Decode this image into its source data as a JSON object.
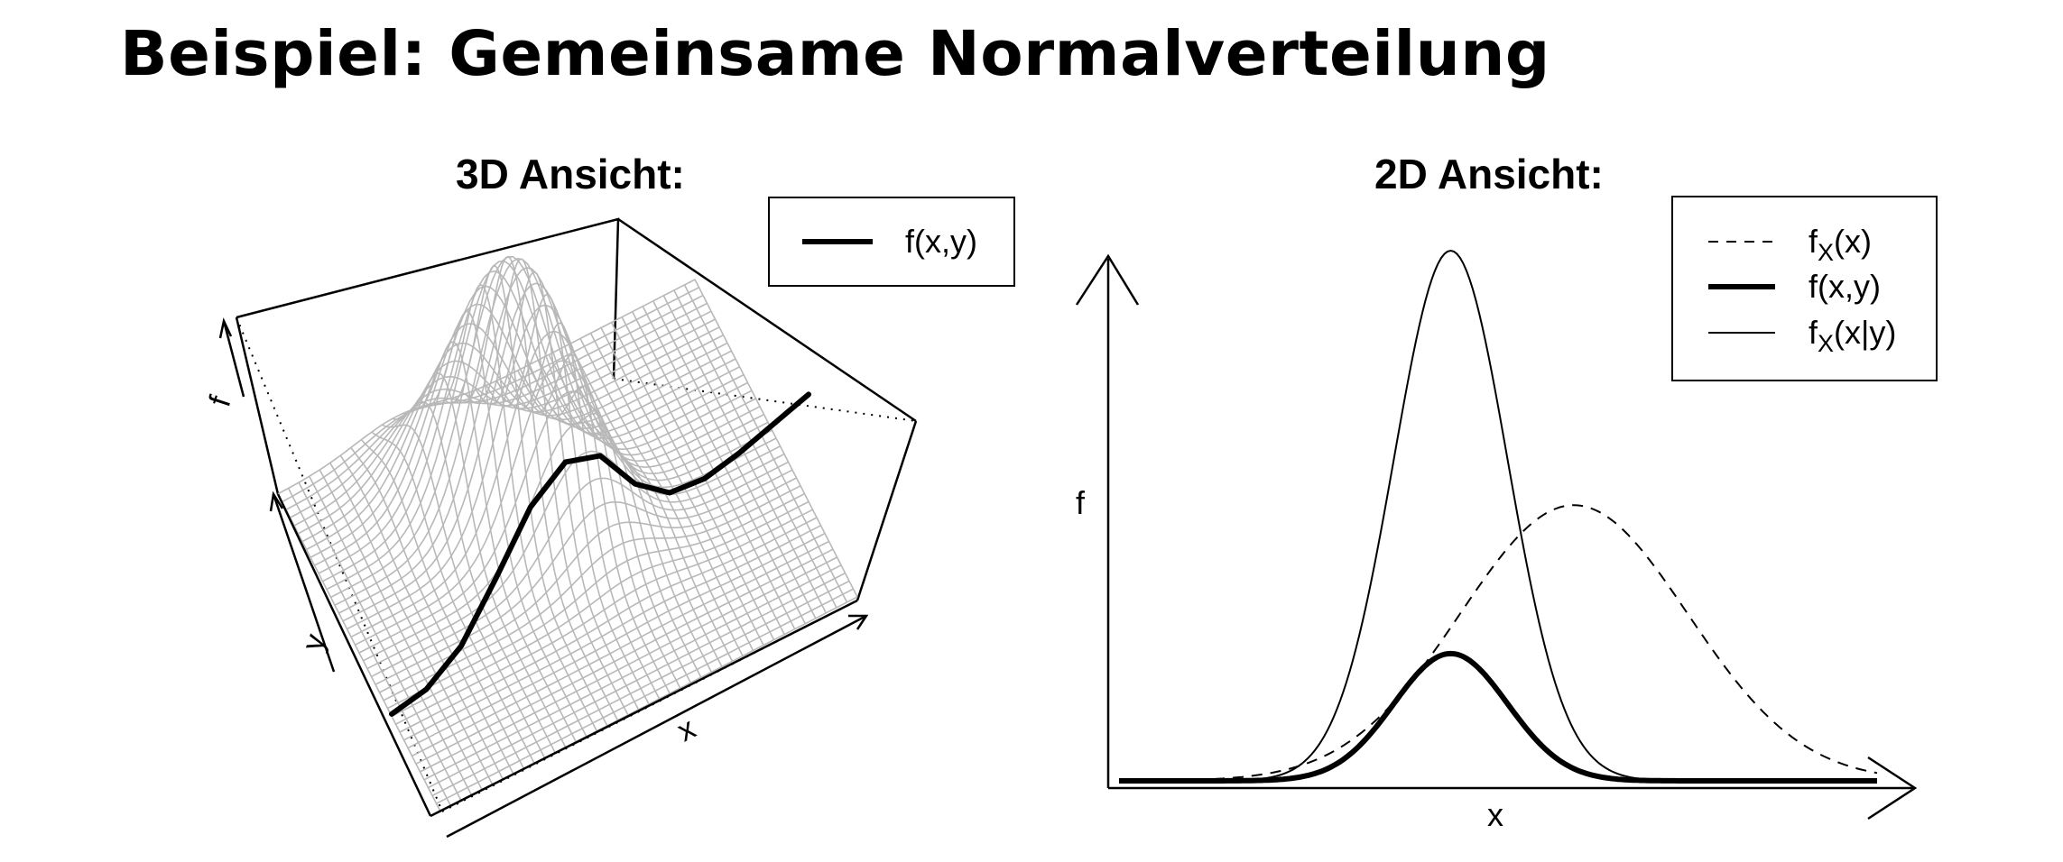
{
  "slide": {
    "title": "Beispiel: Gemeinsame Normalverteilung"
  },
  "chart_data": [
    {
      "type": "surface3d",
      "title": "3D Ansicht:",
      "axis_labels": {
        "x": "x",
        "y": "y",
        "z": "f"
      },
      "legend": {
        "placement": "top-right",
        "entries": [
          {
            "label": "f(x,y)",
            "style": "thick-solid"
          }
        ]
      },
      "surface": {
        "function": "bivariate normal density f(x,y) with a single peak",
        "grid": "mesh"
      },
      "highlighted_slice": {
        "name": "f(x,y)",
        "x": [
          -3,
          -2.5,
          -2,
          -1.5,
          -1,
          -0.5,
          0,
          0.5,
          1,
          1.5,
          2,
          2.5,
          3
        ],
        "values": [
          0.003,
          0.012,
          0.045,
          0.11,
          0.18,
          0.215,
          0.2,
          0.14,
          0.105,
          0.1,
          0.11,
          0.125,
          0.14
        ]
      }
    },
    {
      "type": "line",
      "title": "2D Ansicht:",
      "xlabel": "x",
      "ylabel": "f",
      "axis_ticks": false,
      "legend": {
        "placement": "top-right",
        "entries": [
          {
            "main": "f",
            "sub": "X",
            "suffix": "(x)",
            "style": "dashed"
          },
          {
            "main": "f(x,y)",
            "sub": "",
            "suffix": "",
            "style": "thick-solid"
          },
          {
            "main": "f",
            "sub": "X",
            "suffix": "(x|y)",
            "style": "thin-solid"
          }
        ]
      },
      "x_range": [
        -4,
        4
      ],
      "series": [
        {
          "name": "fX(x)",
          "style": "dashed",
          "mean": 0.8,
          "sd": 1.2,
          "peak": 0.52
        },
        {
          "name": "f(x,y)",
          "style": "thick-solid",
          "mean": -0.5,
          "sd": 0.6,
          "peak": 0.24
        },
        {
          "name": "fX(x|y)",
          "style": "thin-solid",
          "mean": -0.5,
          "sd": 0.6,
          "peak": 1.0
        }
      ],
      "y_range": [
        0,
        1.0
      ]
    }
  ]
}
